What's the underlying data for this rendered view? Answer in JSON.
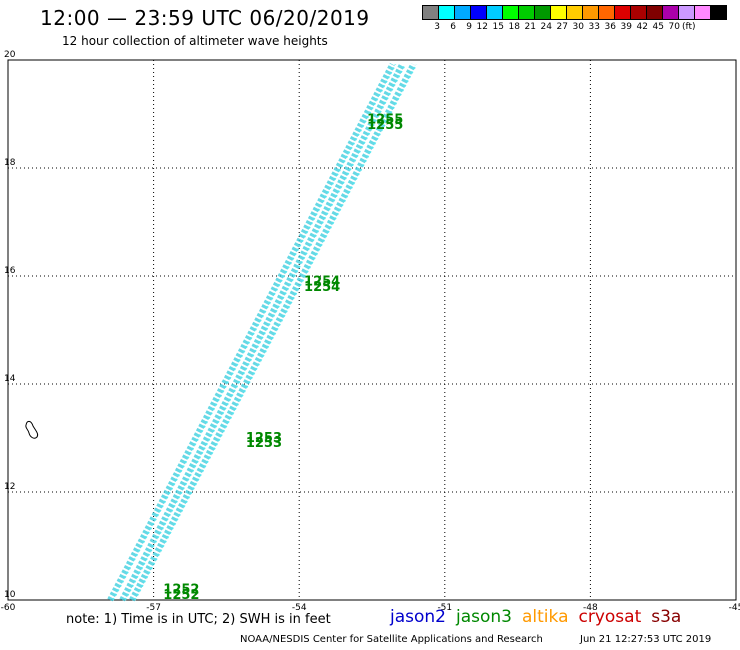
{
  "header": {
    "title": "12:00 — 23:59 UTC 06/20/2019",
    "subtitle": "12 hour collection of altimeter wave heights"
  },
  "color_scale": {
    "colors": [
      "#808080",
      "#00ffff",
      "#00aaff",
      "#0000ff",
      "#00ccff",
      "#00ff00",
      "#00cc00",
      "#009900",
      "#ffff00",
      "#ffcc00",
      "#ff9900",
      "#ff6600",
      "#dd0000",
      "#aa0000",
      "#800000",
      "#aa00aa",
      "#cc99ff",
      "#ff88ff",
      "#000000"
    ],
    "labels": [
      "3",
      "6",
      "9",
      "12",
      "15",
      "18",
      "21",
      "24",
      "27",
      "30",
      "33",
      "36",
      "39",
      "42",
      "45",
      "70"
    ],
    "unit": "(ft)"
  },
  "map": {
    "lon_range": [
      -60,
      -45
    ],
    "lat_range": [
      10,
      20
    ],
    "x_ticks": [
      "-60",
      "-57",
      "-54",
      "-51",
      "-48",
      "-45"
    ],
    "y_ticks": [
      "20",
      "18",
      "16",
      "14",
      "12",
      "10"
    ],
    "track_color": "#33ccdd",
    "tracks": [
      {
        "start": [
          -60.0,
          10.0
        ],
        "end": [
          -54.18,
          19.92
        ]
      },
      {
        "start": [
          -59.75,
          10.0
        ],
        "end": [
          -53.98,
          19.92
        ]
      },
      {
        "start": [
          -59.55,
          10.0
        ],
        "end": [
          -53.75,
          19.92
        ]
      }
    ],
    "time_labels": [
      {
        "text": "1252",
        "lon": -56.8,
        "lat": 10.12
      },
      {
        "text": "1252",
        "lon": -56.8,
        "lat": 10.02
      },
      {
        "text": "1253",
        "lon": -55.1,
        "lat": 12.93
      },
      {
        "text": "1253",
        "lon": -55.1,
        "lat": 12.83
      },
      {
        "text": "1254",
        "lon": -53.9,
        "lat": 15.82
      },
      {
        "text": "1254",
        "lon": -53.9,
        "lat": 15.72
      },
      {
        "text": "1255",
        "lon": -52.6,
        "lat": 18.82
      },
      {
        "text": "1255",
        "lon": -52.6,
        "lat": 18.72
      }
    ],
    "time_label_color": "#008800"
  },
  "footer": {
    "note": "note: 1) Time is in UTC; 2) SWH is in feet",
    "satellites": [
      {
        "name": "jason2",
        "color": "#0000cc"
      },
      {
        "name": "jason3",
        "color": "#008800"
      },
      {
        "name": "altika",
        "color": "#ff9900"
      },
      {
        "name": "cryosat",
        "color": "#cc0000"
      },
      {
        "name": "s3a",
        "color": "#880000"
      }
    ],
    "credit": "NOAA/NESDIS Center for Satellite Applications and Research",
    "timestamp": "Jun 21 12:27:53 UTC 2019"
  }
}
